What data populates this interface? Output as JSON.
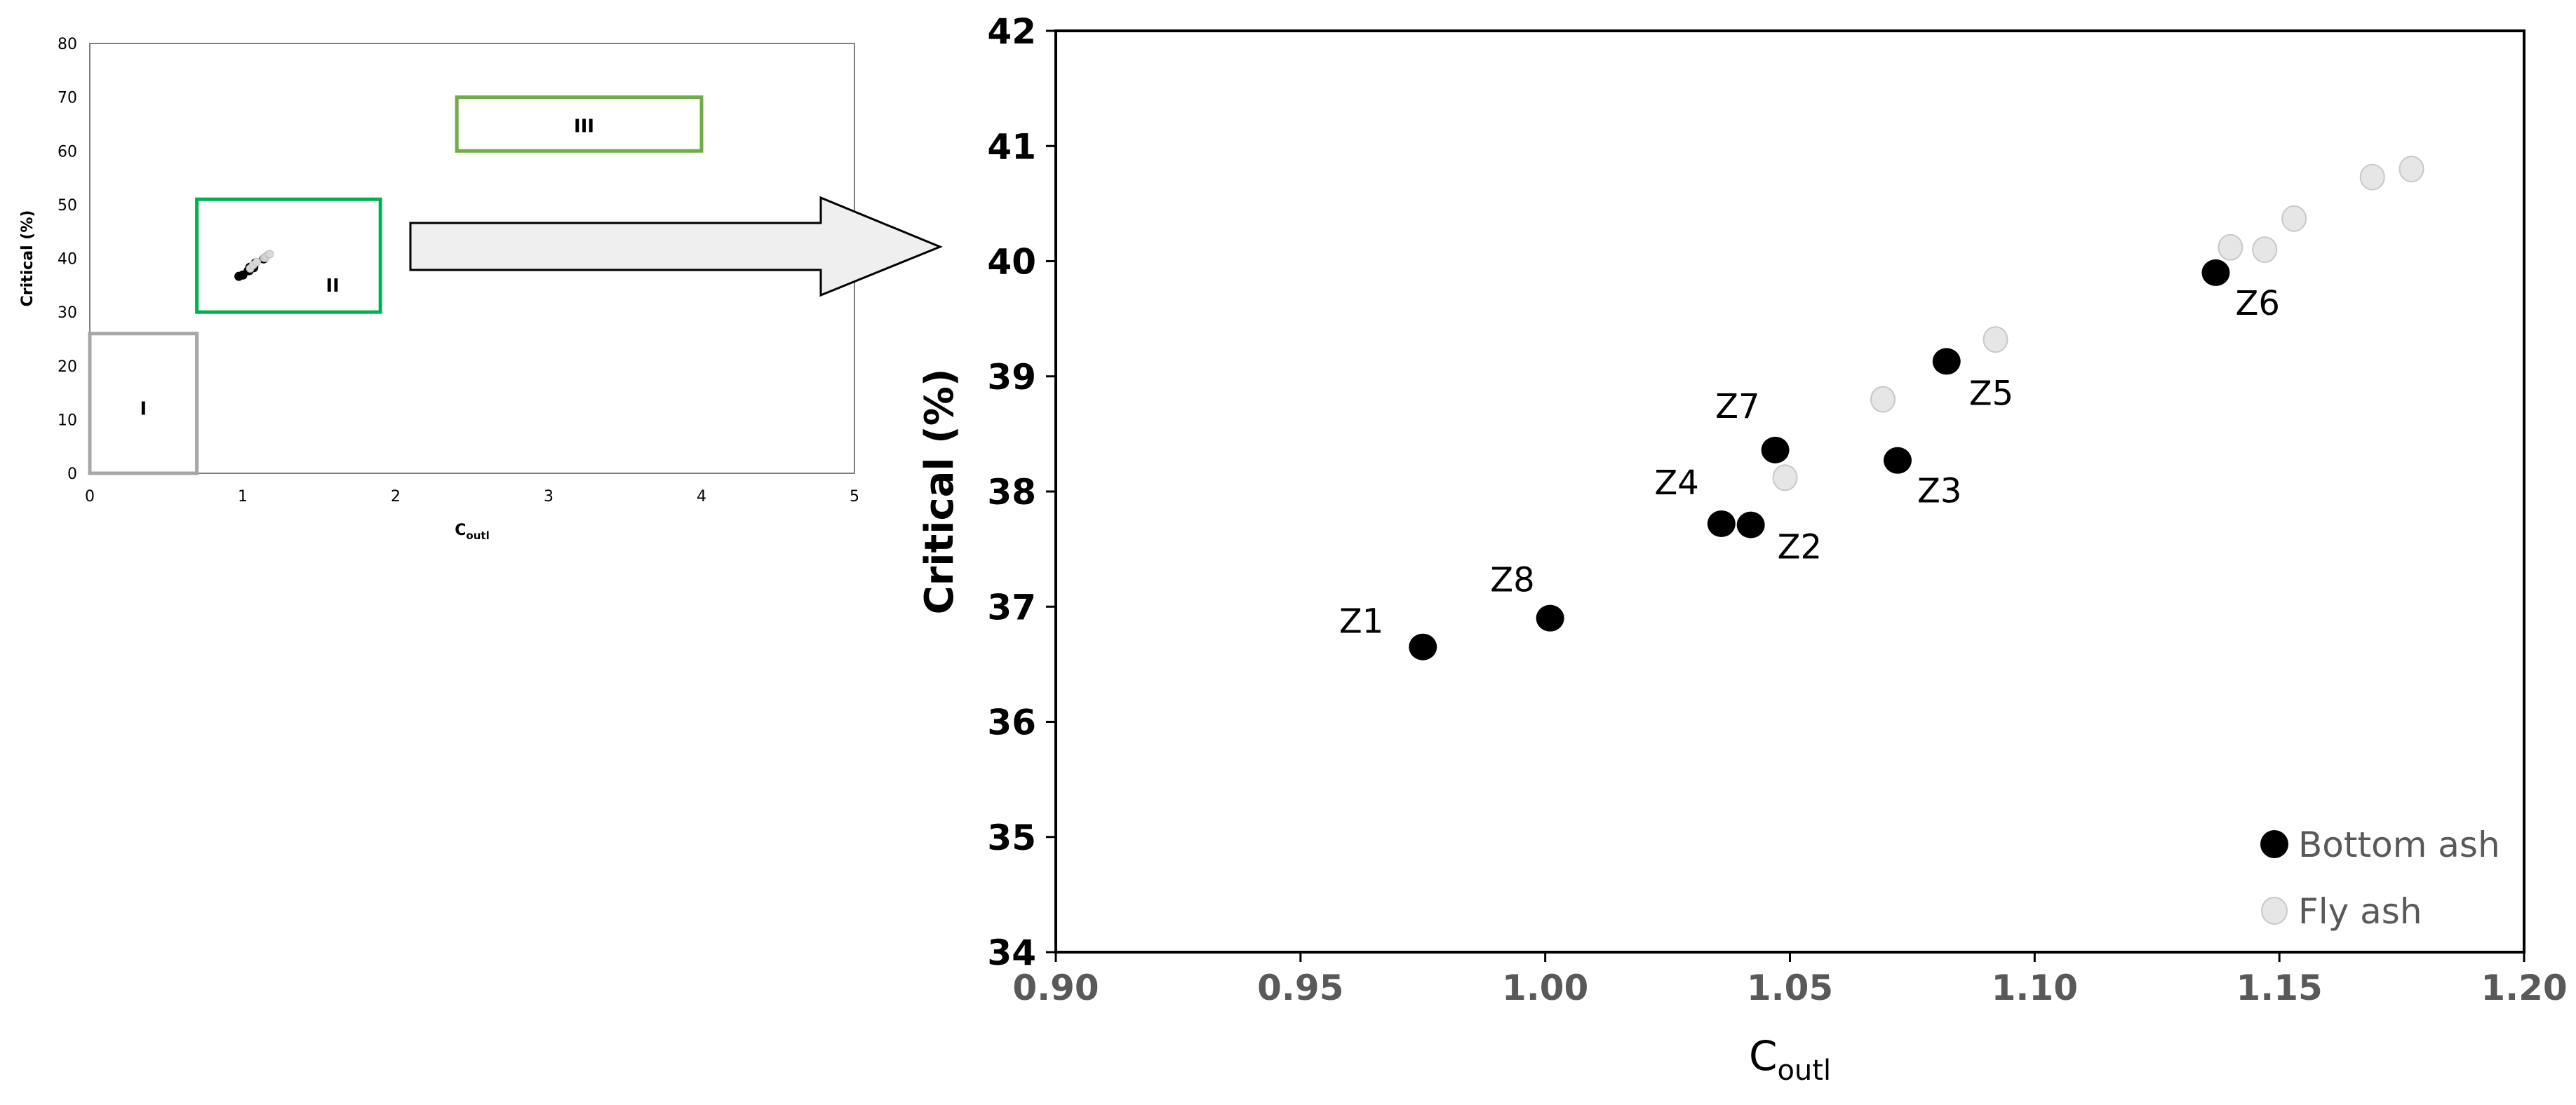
{
  "chart_data": [
    {
      "type": "scatter",
      "title": "",
      "xlabel": "C",
      "xlabel_sub": "outl",
      "ylabel": "Critical (%)",
      "xlim": [
        0,
        5
      ],
      "ylim": [
        0,
        80
      ],
      "xticks": [
        "0",
        "1",
        "2",
        "3",
        "4",
        "5"
      ],
      "yticks": [
        "0",
        "10",
        "20",
        "30",
        "40",
        "50",
        "60",
        "70",
        "80"
      ],
      "grid": false,
      "series": [
        {
          "name": "Bottom ash",
          "color": "#000000",
          "points": [
            {
              "x": 0.975,
              "y": 36.65
            },
            {
              "x": 1.001,
              "y": 36.9
            },
            {
              "x": 1.036,
              "y": 37.72
            },
            {
              "x": 1.042,
              "y": 37.71
            },
            {
              "x": 1.047,
              "y": 38.36
            },
            {
              "x": 1.072,
              "y": 38.27
            },
            {
              "x": 1.082,
              "y": 39.13
            },
            {
              "x": 1.137,
              "y": 39.9
            }
          ]
        },
        {
          "name": "Fly ash",
          "color": "#d9d9d9",
          "points": [
            {
              "x": 1.049,
              "y": 38.12
            },
            {
              "x": 1.069,
              "y": 38.8
            },
            {
              "x": 1.092,
              "y": 39.32
            },
            {
              "x": 1.14,
              "y": 40.12
            },
            {
              "x": 1.147,
              "y": 40.1
            },
            {
              "x": 1.153,
              "y": 40.37
            },
            {
              "x": 1.169,
              "y": 40.73
            },
            {
              "x": 1.177,
              "y": 40.8
            }
          ]
        }
      ],
      "regions": [
        {
          "label": "I",
          "x": [
            0,
            0.7
          ],
          "y": [
            0,
            26
          ],
          "color": "#a6a6a6"
        },
        {
          "label": "II",
          "x": [
            0.7,
            1.9
          ],
          "y": [
            30,
            51
          ],
          "color": "#00b050"
        },
        {
          "label": "III",
          "x": [
            2.4,
            4.0
          ],
          "y": [
            60,
            70
          ],
          "color": "#70ad47"
        }
      ]
    },
    {
      "type": "scatter",
      "title": "",
      "xlabel": "C",
      "xlabel_sub": "outl",
      "ylabel": "Critical (%)",
      "xlim": [
        0.9,
        1.2
      ],
      "ylim": [
        34,
        42
      ],
      "xticks": [
        "0.90",
        "0.95",
        "1.00",
        "1.05",
        "1.10",
        "1.15",
        "1.20"
      ],
      "yticks": [
        "34",
        "35",
        "36",
        "37",
        "38",
        "39",
        "40",
        "41",
        "42"
      ],
      "grid": false,
      "legend_position": "bottom-right",
      "series": [
        {
          "name": "Bottom ash",
          "color": "#000000",
          "points": [
            {
              "x": 0.975,
              "y": 36.65,
              "label": "Z1"
            },
            {
              "x": 1.001,
              "y": 36.9,
              "label": "Z8"
            },
            {
              "x": 1.036,
              "y": 37.72,
              "label": "Z4"
            },
            {
              "x": 1.042,
              "y": 37.71,
              "label": "Z2"
            },
            {
              "x": 1.047,
              "y": 38.36,
              "label": "Z7"
            },
            {
              "x": 1.072,
              "y": 38.27,
              "label": "Z3"
            },
            {
              "x": 1.082,
              "y": 39.13,
              "label": "Z5"
            },
            {
              "x": 1.137,
              "y": 39.9,
              "label": "Z6"
            }
          ]
        },
        {
          "name": "Fly ash",
          "color": "#d9d9d9",
          "points": [
            {
              "x": 1.049,
              "y": 38.12
            },
            {
              "x": 1.069,
              "y": 38.8
            },
            {
              "x": 1.092,
              "y": 39.32
            },
            {
              "x": 1.14,
              "y": 40.12
            },
            {
              "x": 1.147,
              "y": 40.1
            },
            {
              "x": 1.153,
              "y": 40.37
            },
            {
              "x": 1.169,
              "y": 40.73
            },
            {
              "x": 1.177,
              "y": 40.8
            }
          ]
        }
      ]
    }
  ]
}
